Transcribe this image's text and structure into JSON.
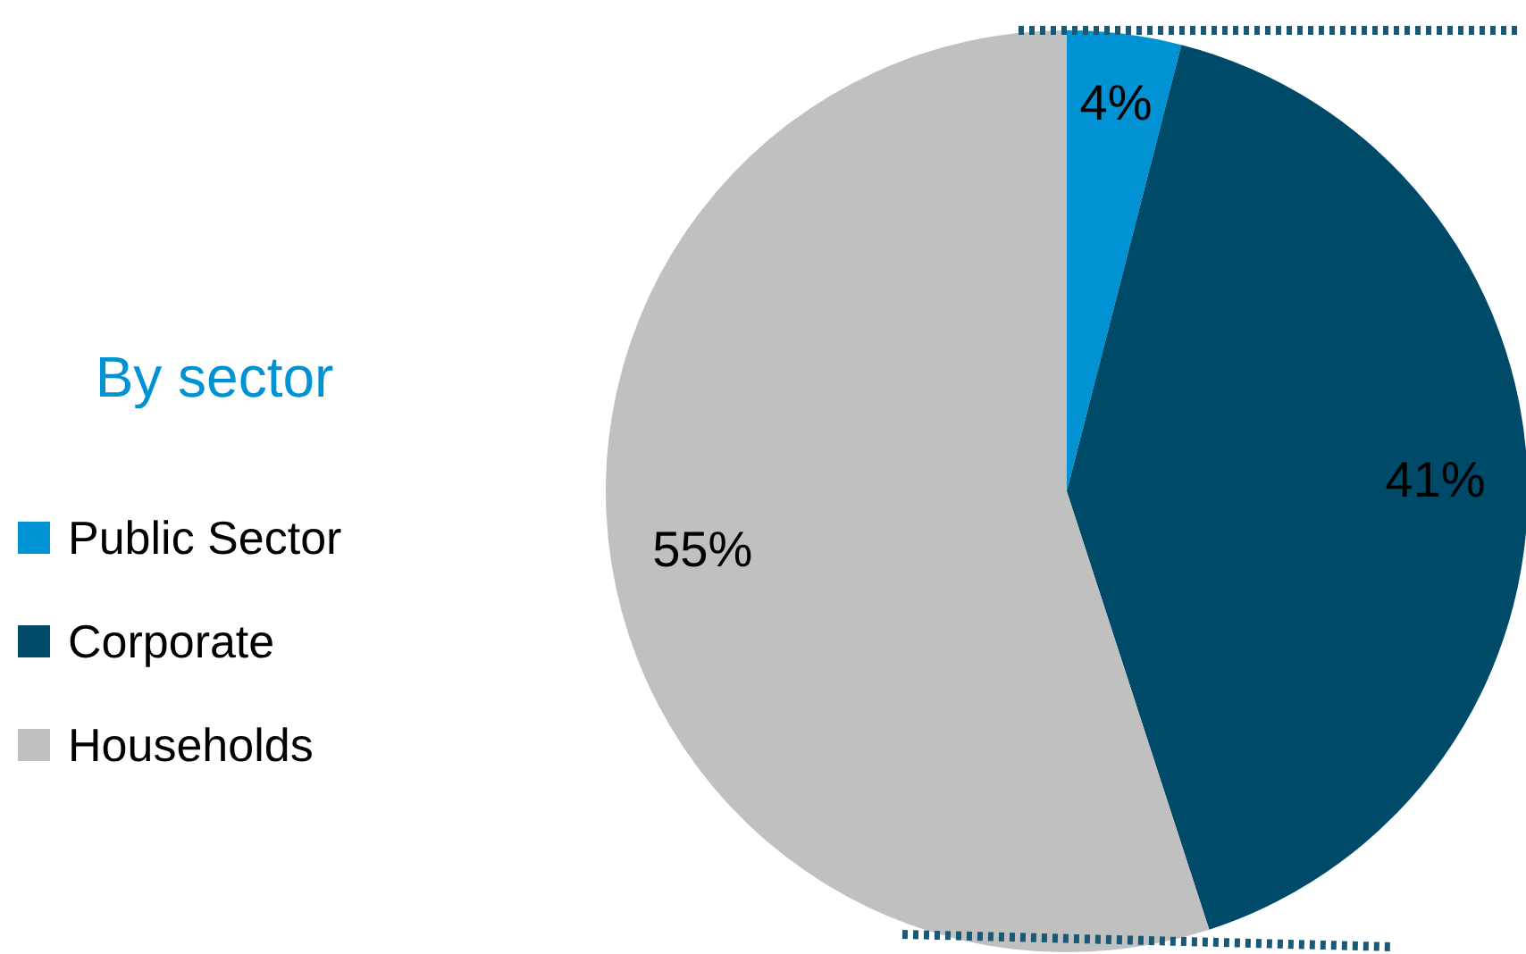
{
  "chart_data": {
    "type": "pie",
    "title": "By sector",
    "categories": [
      "Public Sector",
      "Corporate",
      "Households"
    ],
    "values": [
      4,
      41,
      55
    ],
    "colors": [
      "#0092d2",
      "#004a69",
      "#bfc0bf"
    ],
    "value_labels": [
      "4%",
      "41%",
      "55%"
    ],
    "legend": "left"
  }
}
